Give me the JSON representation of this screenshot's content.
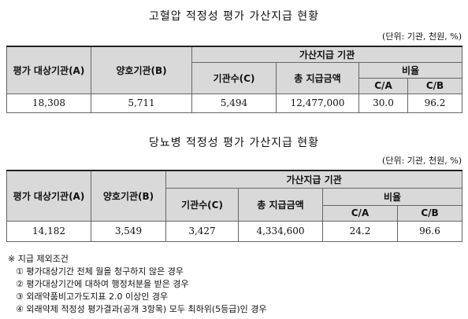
{
  "table1": {
    "title": "고혈압 적정성 평가 가산지급 현황",
    "unit": "(단위: 기관, 천원, %)",
    "headers": {
      "eval": "평가 대상기관(A)",
      "good": "양호기관(B)",
      "group": "가산지급 기관",
      "count": "기관수(C)",
      "total": "총 지급금액",
      "ratio": "비율",
      "ca": "C/A",
      "cb": "C/B"
    },
    "row": {
      "eval": "18,308",
      "good": "5,711",
      "count": "5,494",
      "total": "12,477,000",
      "ca": "30.0",
      "cb": "96.2"
    }
  },
  "table2": {
    "title": "당뇨병 적정성 평가 가산지급 현황",
    "unit": "(단위: 기관, 천원, %)",
    "headers": {
      "eval": "평가 대상기관(A)",
      "good": "양호기관(B)",
      "group": "가산지급 기관",
      "count": "기관수(C)",
      "total": "총 지급금액",
      "ratio": "비율",
      "ca": "C/A",
      "cb": "C/B"
    },
    "row": {
      "eval": "14,182",
      "good": "3,549",
      "count": "3,427",
      "total": "4,334,600",
      "ca": "24.2",
      "cb": "96.6"
    }
  },
  "notes": {
    "header": "※ 지급 제외조건",
    "items": [
      "① 평가대상기간 전체 월을 청구하지 않은 경우",
      "② 평가대상기간에 대하여 행정처분을 받은 경우",
      "③ 외래약품비고가도지표 2.0 이상인 경우",
      "④ 외래약제 적정성 평가결과(공개 3항목) 모두 최하위(5등급)인 경우"
    ]
  }
}
